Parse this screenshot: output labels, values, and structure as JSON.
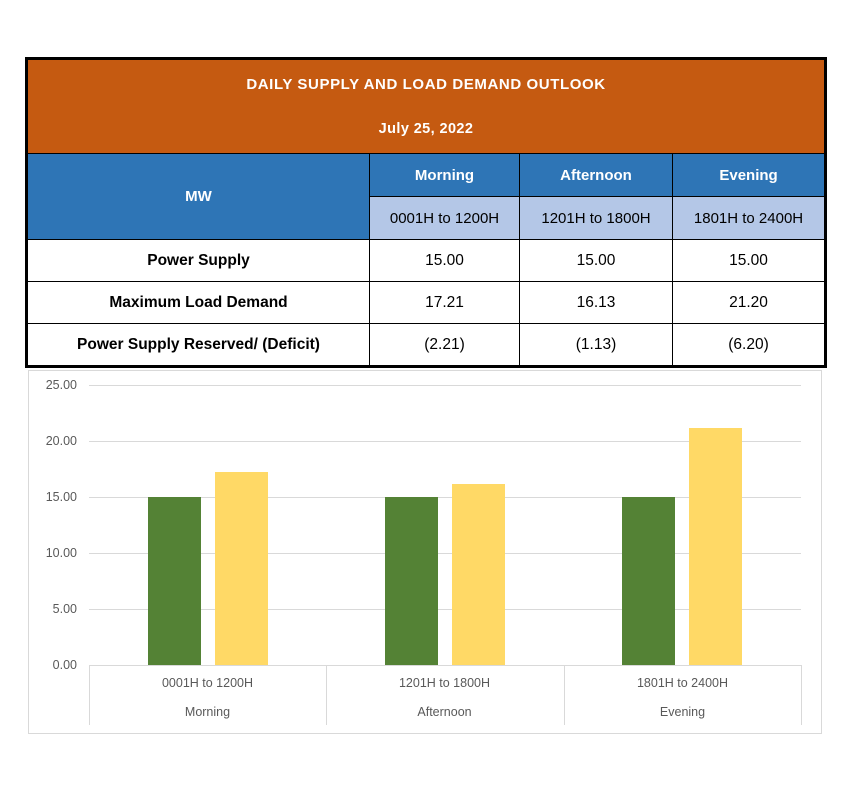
{
  "report": {
    "title": "DAILY SUPPLY AND LOAD DEMAND OUTLOOK",
    "date": "July 25, 2022"
  },
  "table": {
    "unit_header": "MW",
    "columns": [
      {
        "period": "Morning",
        "time": "0001H to 1200H"
      },
      {
        "period": "Afternoon",
        "time": "1201H to 1800H"
      },
      {
        "period": "Evening",
        "time": "1801H to 2400H"
      }
    ],
    "rows": [
      {
        "label": "Power Supply",
        "values": [
          "15.00",
          "15.00",
          "15.00"
        ]
      },
      {
        "label": "Maximum Load Demand",
        "values": [
          "17.21",
          "16.13",
          "21.20"
        ]
      },
      {
        "label": "Power Supply Reserved/ (Deficit)",
        "values": [
          "(2.21)",
          "(1.13)",
          "(6.20)"
        ]
      }
    ]
  },
  "chart_data": {
    "type": "bar",
    "title": "",
    "categories": [
      {
        "time": "0001H to 1200H",
        "period": "Morning"
      },
      {
        "time": "1201H to 1800H",
        "period": "Afternoon"
      },
      {
        "time": "1801H to 2400H",
        "period": "Evening"
      }
    ],
    "series": [
      {
        "name": "Power Supply",
        "color": "#548235",
        "values": [
          15.0,
          15.0,
          15.0
        ]
      },
      {
        "name": "Maximum Load Demand",
        "color": "#FFD966",
        "values": [
          17.21,
          16.13,
          21.2
        ]
      }
    ],
    "ylim": [
      0,
      25
    ],
    "ytick_step": 5,
    "tick_decimals": 2,
    "grid": true,
    "legend": "none"
  },
  "colors": {
    "header_orange": "#C55A11",
    "header_blue": "#2E75B6",
    "subheader_blue": "#B4C7E7",
    "supply_green": "#548235",
    "demand_yellow_cell": "#FFE699",
    "bar_green": "#548235",
    "bar_yellow": "#FFD966",
    "grid_gray": "#D9D9D9",
    "axis_text_gray": "#595959"
  }
}
